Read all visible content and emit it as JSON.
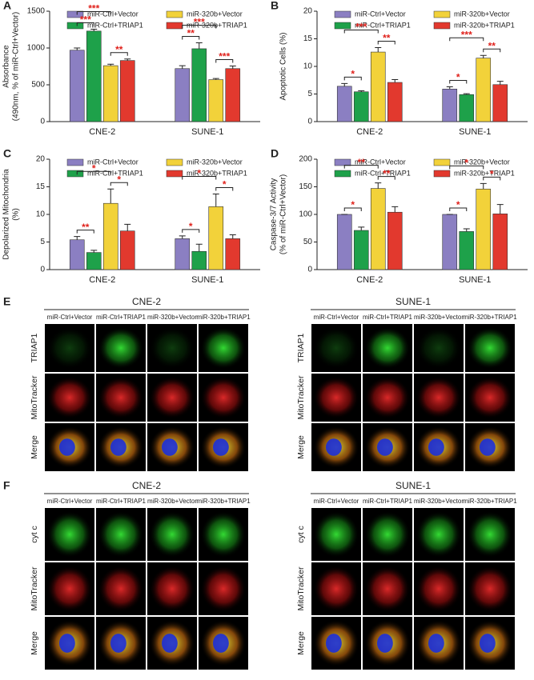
{
  "chart_data": [
    {
      "type": "bar",
      "label": "A",
      "ylabel": [
        "Absorbance",
        "(490nm, % of miR-Ctrl+Vector)"
      ],
      "categories": [
        "CNE-2",
        "SUNE-1"
      ],
      "ylim": [
        0,
        1500
      ],
      "yticks": [
        0,
        500,
        1000,
        1500
      ],
      "series": [
        {
          "name": "miR-Ctrl+Vector",
          "color": "#8b7fc2",
          "values": [
            970,
            720
          ],
          "errors": [
            30,
            40
          ]
        },
        {
          "name": "miR-Ctrl+TRIAP1",
          "color": "#1ea14a",
          "values": [
            1230,
            990
          ],
          "errors": [
            25,
            80
          ]
        },
        {
          "name": "miR-320b+Vector",
          "color": "#f2d23a",
          "values": [
            760,
            570
          ],
          "errors": [
            20,
            15
          ]
        },
        {
          "name": "miR-320b+TRIAP1",
          "color": "#e2392e",
          "values": [
            830,
            720
          ],
          "errors": [
            20,
            35
          ]
        }
      ],
      "significance": [
        {
          "category": 0,
          "from": 0,
          "to": 1,
          "label": "***"
        },
        {
          "category": 0,
          "from": 0,
          "to": 2,
          "label": "***"
        },
        {
          "category": 0,
          "from": 2,
          "to": 3,
          "label": "**"
        },
        {
          "category": 1,
          "from": 0,
          "to": 1,
          "label": "**"
        },
        {
          "category": 1,
          "from": 0,
          "to": 2,
          "label": "***"
        },
        {
          "category": 1,
          "from": 2,
          "to": 3,
          "label": "***"
        }
      ]
    },
    {
      "type": "bar",
      "label": "B",
      "ylabel": [
        "Apoptotic Cells (%)"
      ],
      "categories": [
        "CNE-2",
        "SUNE-1"
      ],
      "ylim": [
        0,
        20
      ],
      "yticks": [
        0,
        5,
        10,
        15,
        20
      ],
      "series": [
        {
          "name": "miR-Ctrl+Vector",
          "color": "#8b7fc2",
          "values": [
            6.4,
            5.9
          ],
          "errors": [
            0.5,
            0.4
          ]
        },
        {
          "name": "miR-Ctrl+TRIAP1",
          "color": "#1ea14a",
          "values": [
            5.4,
            4.9
          ],
          "errors": [
            0.2,
            0.15
          ]
        },
        {
          "name": "miR-320b+Vector",
          "color": "#f2d23a",
          "values": [
            12.6,
            11.5
          ],
          "errors": [
            0.8,
            0.5
          ]
        },
        {
          "name": "miR-320b+TRIAP1",
          "color": "#e2392e",
          "values": [
            7.1,
            6.7
          ],
          "errors": [
            0.5,
            0.6
          ]
        }
      ],
      "significance": [
        {
          "category": 0,
          "from": 0,
          "to": 1,
          "label": "*"
        },
        {
          "category": 0,
          "from": 0,
          "to": 2,
          "label": "***"
        },
        {
          "category": 0,
          "from": 2,
          "to": 3,
          "label": "**"
        },
        {
          "category": 1,
          "from": 0,
          "to": 1,
          "label": "*"
        },
        {
          "category": 1,
          "from": 0,
          "to": 2,
          "label": "***"
        },
        {
          "category": 1,
          "from": 2,
          "to": 3,
          "label": "**"
        }
      ]
    },
    {
      "type": "bar",
      "label": "C",
      "ylabel": [
        "Depolarized Mitochondria",
        "(%)"
      ],
      "categories": [
        "CNE-2",
        "SUNE-1"
      ],
      "ylim": [
        0,
        20
      ],
      "yticks": [
        0,
        5,
        10,
        15,
        20
      ],
      "series": [
        {
          "name": "miR-Ctrl+Vector",
          "color": "#8b7fc2",
          "values": [
            5.4,
            5.6
          ],
          "errors": [
            0.6,
            0.5
          ]
        },
        {
          "name": "miR-Ctrl+TRIAP1",
          "color": "#1ea14a",
          "values": [
            3.1,
            3.3
          ],
          "errors": [
            0.4,
            1.3
          ]
        },
        {
          "name": "miR-320b+Vector",
          "color": "#f2d23a",
          "values": [
            12,
            11.4
          ],
          "errors": [
            2.6,
            2.3
          ]
        },
        {
          "name": "miR-320b+TRIAP1",
          "color": "#e2392e",
          "values": [
            7,
            5.6
          ],
          "errors": [
            1.2,
            0.7
          ]
        }
      ],
      "significance": [
        {
          "category": 0,
          "from": 0,
          "to": 1,
          "label": "**"
        },
        {
          "category": 0,
          "from": 0,
          "to": 2,
          "label": "*"
        },
        {
          "category": 0,
          "from": 2,
          "to": 3,
          "label": "*"
        },
        {
          "category": 1,
          "from": 0,
          "to": 1,
          "label": "*"
        },
        {
          "category": 1,
          "from": 0,
          "to": 2,
          "label": "*"
        },
        {
          "category": 1,
          "from": 2,
          "to": 3,
          "label": "*"
        }
      ]
    },
    {
      "type": "bar",
      "label": "D",
      "ylabel": [
        "Caspase-3/7 Activity",
        "(% of miR-Ctrl+Vector)"
      ],
      "categories": [
        "CNE-2",
        "SUNE-1"
      ],
      "ylim": [
        0,
        200
      ],
      "yticks": [
        0,
        50,
        100,
        150,
        200
      ],
      "series": [
        {
          "name": "miR-Ctrl+Vector",
          "color": "#8b7fc2",
          "values": [
            100,
            100
          ],
          "errors": [
            0,
            0
          ]
        },
        {
          "name": "miR-Ctrl+TRIAP1",
          "color": "#1ea14a",
          "values": [
            71,
            69
          ],
          "errors": [
            6,
            5
          ]
        },
        {
          "name": "miR-320b+Vector",
          "color": "#f2d23a",
          "values": [
            147,
            146
          ],
          "errors": [
            10,
            10
          ]
        },
        {
          "name": "miR-320b+TRIAP1",
          "color": "#e2392e",
          "values": [
            104,
            101
          ],
          "errors": [
            10,
            17
          ]
        }
      ],
      "significance": [
        {
          "category": 0,
          "from": 0,
          "to": 1,
          "label": "*"
        },
        {
          "category": 0,
          "from": 0,
          "to": 2,
          "label": "**"
        },
        {
          "category": 0,
          "from": 2,
          "to": 3,
          "label": "**"
        },
        {
          "category": 1,
          "from": 0,
          "to": 1,
          "label": "*"
        },
        {
          "category": 1,
          "from": 0,
          "to": 2,
          "label": "*"
        },
        {
          "category": 1,
          "from": 2,
          "to": 3,
          "label": "*"
        }
      ]
    }
  ],
  "micrographs": [
    {
      "label": "E",
      "groups": [
        {
          "title": "CNE-2",
          "columns": [
            "miR-Ctrl+Vector",
            "miR-Ctrl+TRIAP1",
            "miR-320b+Vector",
            "miR-320b+TRIAP1"
          ],
          "rows": [
            "TRIAP1",
            "MitoTracker",
            "Merge"
          ]
        },
        {
          "title": "SUNE-1",
          "columns": [
            "miR-Ctrl+Vector",
            "miR-Ctrl+TRIAP1",
            "miR-320b+Vector",
            "miR-320b+TRIAP1"
          ],
          "rows": [
            "TRIAP1",
            "MitoTracker",
            "Merge"
          ]
        }
      ]
    },
    {
      "label": "F",
      "groups": [
        {
          "title": "CNE-2",
          "columns": [
            "miR-Ctrl+Vector",
            "miR-Ctrl+TRIAP1",
            "miR-320b+Vector",
            "miR-320b+TRIAP1"
          ],
          "rows": [
            "cyt c",
            "MitoTracker",
            "Merge"
          ]
        },
        {
          "title": "SUNE-1",
          "columns": [
            "miR-Ctrl+Vector",
            "miR-Ctrl+TRIAP1",
            "miR-320b+Vector",
            "miR-320b+TRIAP1"
          ],
          "rows": [
            "cyt c",
            "MitoTracker",
            "Merge"
          ]
        }
      ]
    }
  ]
}
